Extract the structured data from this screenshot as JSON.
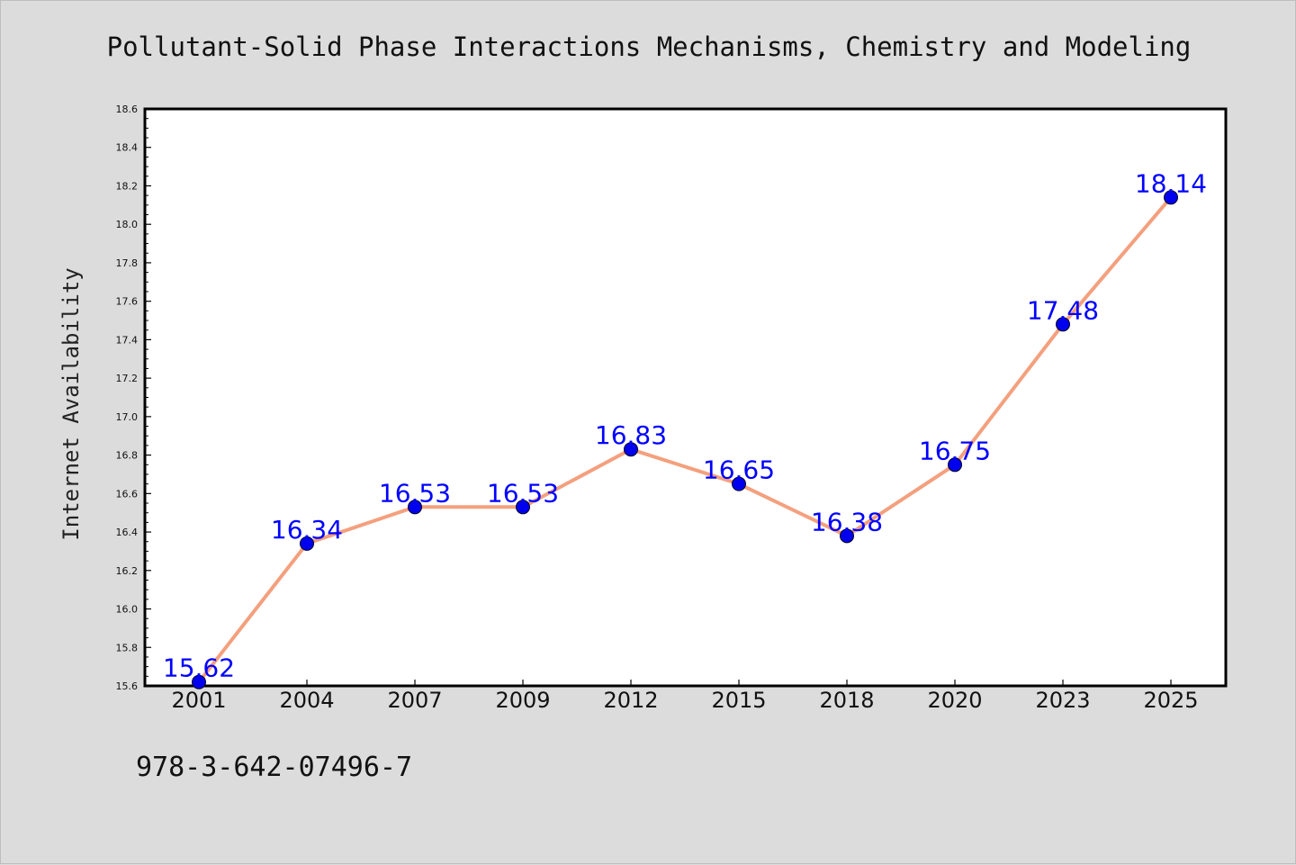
{
  "title": "Pollutant-Solid Phase Interactions Mechanisms, Chemistry and Modeling",
  "footer_text": "978-3-642-07496-7",
  "colors": {
    "background": "#dcdcdc",
    "plot_background": "#ffffff",
    "line": "#f4a07e",
    "marker": "#0000ee",
    "data_label": "#0000ff"
  },
  "chart_data": {
    "type": "line",
    "title": "Pollutant-Solid Phase Interactions Mechanisms, Chemistry and Modeling",
    "xlabel": "",
    "ylabel": "Internet Availability",
    "categories": [
      "2001",
      "2004",
      "2007",
      "2009",
      "2012",
      "2015",
      "2018",
      "2020",
      "2023",
      "2025"
    ],
    "values": [
      15.62,
      16.34,
      16.53,
      16.53,
      16.83,
      16.65,
      16.38,
      16.75,
      17.48,
      18.14
    ],
    "data_labels": [
      "15.62",
      "16.34",
      "16.53",
      "16.53",
      "16.83",
      "16.65",
      "16.38",
      "16.75",
      "17.48",
      "18.14"
    ],
    "ylim": [
      15.6,
      18.6
    ],
    "yticks": [
      "15.6",
      "15.8",
      "16.0",
      "16.2",
      "16.4",
      "16.6",
      "16.8",
      "17.0",
      "17.2",
      "17.4",
      "17.6",
      "17.8",
      "18.0",
      "18.2",
      "18.4",
      "18.6"
    ],
    "grid": false,
    "legend": "none"
  }
}
